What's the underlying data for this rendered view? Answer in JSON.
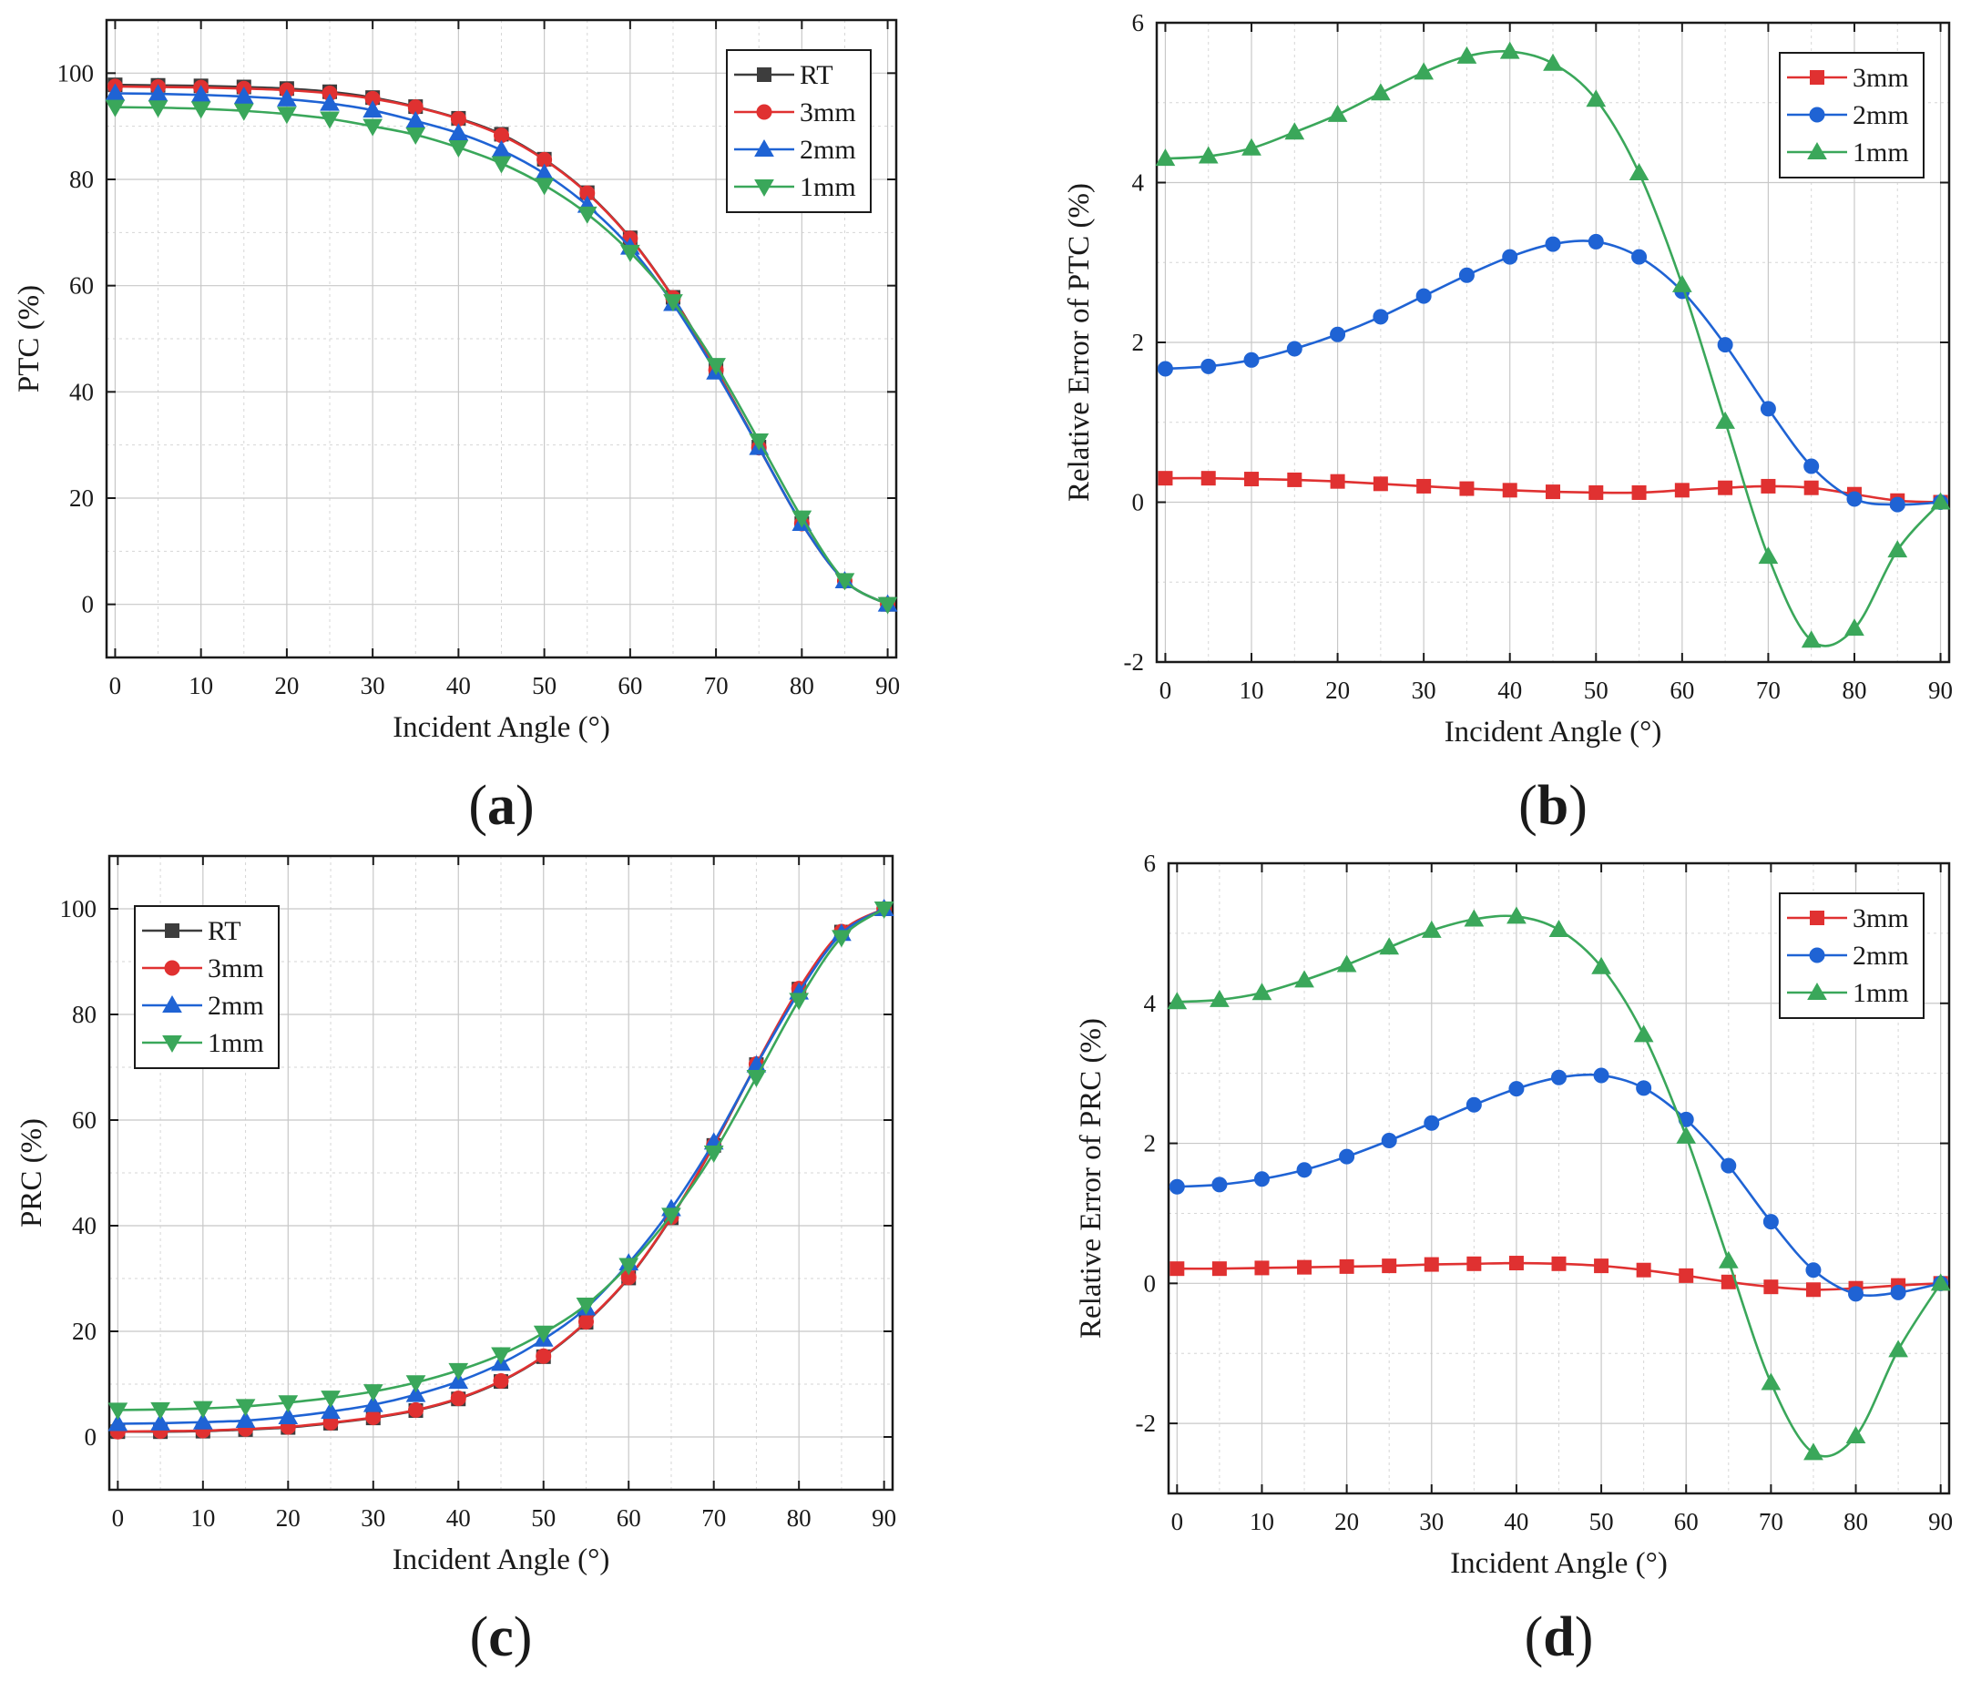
{
  "colors": {
    "RT": "#3d3d3d",
    "3mm": "#e03131",
    "2mm": "#1f63d4",
    "1mm": "#3aa75a"
  },
  "chart_data": [
    {
      "id": "a",
      "panel_label": "a",
      "type": "line",
      "xlabel": "Incident Angle (°)",
      "ylabel": "PTC (%)",
      "xlim": [
        -1,
        91
      ],
      "ylim": [
        -10,
        110
      ],
      "xticks": [
        0,
        10,
        20,
        30,
        40,
        50,
        60,
        70,
        80,
        90
      ],
      "yticks": [
        0,
        20,
        40,
        60,
        80,
        100
      ],
      "grid": true,
      "legend_position": "top-right",
      "x": [
        0,
        5,
        10,
        15,
        20,
        25,
        30,
        35,
        40,
        45,
        50,
        55,
        60,
        65,
        70,
        75,
        80,
        85,
        90
      ],
      "series": [
        {
          "name": "RT",
          "marker": "square",
          "values": [
            97.8,
            97.7,
            97.6,
            97.4,
            97.1,
            96.5,
            95.4,
            93.7,
            91.5,
            88.5,
            83.8,
            77.5,
            69.0,
            57.8,
            44.2,
            29.6,
            15.2,
            4.4,
            0
          ]
        },
        {
          "name": "3mm",
          "marker": "circle",
          "values": [
            97.5,
            97.4,
            97.3,
            97.1,
            96.8,
            96.2,
            95.2,
            93.6,
            91.4,
            88.3,
            83.7,
            77.4,
            68.9,
            57.7,
            44.1,
            29.5,
            15.2,
            4.4,
            0
          ]
        },
        {
          "name": "2mm",
          "marker": "triangle-up",
          "values": [
            96.2,
            96.1,
            95.9,
            95.6,
            95.1,
            94.3,
            93.0,
            91.0,
            88.7,
            85.5,
            81.1,
            75.1,
            67.2,
            56.6,
            43.7,
            29.5,
            15.2,
            4.4,
            0
          ]
        },
        {
          "name": "1mm",
          "marker": "triangle-down",
          "values": [
            93.6,
            93.5,
            93.3,
            92.9,
            92.3,
            91.4,
            90.0,
            88.4,
            86.0,
            83.0,
            78.9,
            73.5,
            66.3,
            57.0,
            45.0,
            30.8,
            16.3,
            4.5,
            0
          ]
        }
      ]
    },
    {
      "id": "b",
      "panel_label": "b",
      "type": "line",
      "xlabel": "Incident Angle (°)",
      "ylabel": "Relative Error of PTC (%)",
      "xlim": [
        -1,
        91
      ],
      "ylim": [
        -2,
        6
      ],
      "xticks": [
        0,
        10,
        20,
        30,
        40,
        50,
        60,
        70,
        80,
        90
      ],
      "yticks": [
        -2,
        0,
        2,
        4,
        6
      ],
      "grid": true,
      "legend_position": "top-right",
      "x": [
        0,
        5,
        10,
        15,
        20,
        25,
        30,
        35,
        40,
        45,
        50,
        55,
        60,
        65,
        70,
        75,
        80,
        85,
        90
      ],
      "series": [
        {
          "name": "3mm",
          "marker": "square",
          "values": [
            0.3,
            0.3,
            0.29,
            0.28,
            0.26,
            0.23,
            0.2,
            0.17,
            0.15,
            0.13,
            0.12,
            0.12,
            0.15,
            0.18,
            0.2,
            0.18,
            0.1,
            0.02,
            0
          ]
        },
        {
          "name": "2mm",
          "marker": "circle",
          "values": [
            1.67,
            1.7,
            1.78,
            1.92,
            2.1,
            2.32,
            2.58,
            2.84,
            3.07,
            3.23,
            3.26,
            3.07,
            2.64,
            1.97,
            1.17,
            0.45,
            0.04,
            -0.03,
            0
          ]
        },
        {
          "name": "1mm",
          "marker": "triangle-up",
          "values": [
            4.3,
            4.33,
            4.43,
            4.63,
            4.85,
            5.12,
            5.38,
            5.58,
            5.64,
            5.49,
            5.04,
            4.12,
            2.72,
            1.01,
            -0.68,
            -1.73,
            -1.58,
            -0.6,
            0
          ]
        }
      ]
    },
    {
      "id": "c",
      "panel_label": "c",
      "type": "line",
      "xlabel": "Incident Angle (°)",
      "ylabel": "PRC (%)",
      "xlim": [
        -1,
        91
      ],
      "ylim": [
        -10,
        110
      ],
      "xticks": [
        0,
        10,
        20,
        30,
        40,
        50,
        60,
        70,
        80,
        90
      ],
      "yticks": [
        0,
        20,
        40,
        60,
        80,
        100
      ],
      "grid": true,
      "legend_position": "top-left",
      "x": [
        0,
        5,
        10,
        15,
        20,
        25,
        30,
        35,
        40,
        45,
        50,
        55,
        60,
        65,
        70,
        75,
        80,
        85,
        90
      ],
      "series": [
        {
          "name": "RT",
          "marker": "square",
          "values": [
            1.0,
            1.0,
            1.1,
            1.4,
            1.8,
            2.6,
            3.6,
            5.0,
            7.2,
            10.5,
            15.2,
            21.7,
            30.1,
            41.5,
            55.2,
            70.5,
            84.8,
            95.6,
            100
          ]
        },
        {
          "name": "3mm",
          "marker": "circle",
          "values": [
            1.0,
            1.1,
            1.2,
            1.5,
            1.9,
            2.7,
            3.7,
            5.1,
            7.3,
            10.6,
            15.3,
            21.8,
            30.2,
            41.6,
            55.3,
            70.6,
            84.9,
            95.7,
            100
          ]
        },
        {
          "name": "2mm",
          "marker": "triangle-up",
          "values": [
            2.5,
            2.6,
            2.8,
            3.1,
            3.8,
            4.8,
            6.1,
            8.0,
            10.5,
            13.9,
            18.5,
            24.4,
            32.9,
            43.2,
            55.8,
            70.4,
            84.2,
            95.3,
            100
          ]
        },
        {
          "name": "1mm",
          "marker": "triangle-down",
          "values": [
            5.1,
            5.2,
            5.4,
            5.8,
            6.5,
            7.4,
            8.6,
            10.3,
            12.6,
            15.6,
            19.7,
            25.0,
            32.5,
            42.0,
            53.8,
            68.1,
            82.7,
            94.6,
            100
          ]
        }
      ]
    },
    {
      "id": "d",
      "panel_label": "d",
      "type": "line",
      "xlabel": "Incident Angle (°)",
      "ylabel": "Relative Error of PRC (%)",
      "xlim": [
        -1,
        91
      ],
      "ylim": [
        -3,
        6
      ],
      "xticks": [
        0,
        10,
        20,
        30,
        40,
        50,
        60,
        70,
        80,
        90
      ],
      "yticks": [
        -2,
        0,
        2,
        4,
        6
      ],
      "grid": true,
      "legend_position": "top-right",
      "x": [
        0,
        5,
        10,
        15,
        20,
        25,
        30,
        35,
        40,
        45,
        50,
        55,
        60,
        65,
        70,
        75,
        80,
        85,
        90
      ],
      "series": [
        {
          "name": "3mm",
          "marker": "square",
          "values": [
            0.21,
            0.21,
            0.22,
            0.23,
            0.24,
            0.25,
            0.27,
            0.28,
            0.29,
            0.28,
            0.25,
            0.19,
            0.11,
            0.02,
            -0.05,
            -0.09,
            -0.07,
            -0.03,
            0
          ]
        },
        {
          "name": "2mm",
          "marker": "circle",
          "values": [
            1.38,
            1.41,
            1.49,
            1.62,
            1.81,
            2.04,
            2.29,
            2.55,
            2.78,
            2.94,
            2.97,
            2.79,
            2.34,
            1.68,
            0.88,
            0.19,
            -0.15,
            -0.13,
            0
          ]
        },
        {
          "name": "1mm",
          "marker": "triangle-up",
          "values": [
            4.02,
            4.05,
            4.15,
            4.33,
            4.55,
            4.8,
            5.04,
            5.2,
            5.24,
            5.05,
            4.52,
            3.55,
            2.1,
            0.32,
            -1.42,
            -2.42,
            -2.18,
            -0.95,
            0
          ]
        }
      ]
    }
  ]
}
